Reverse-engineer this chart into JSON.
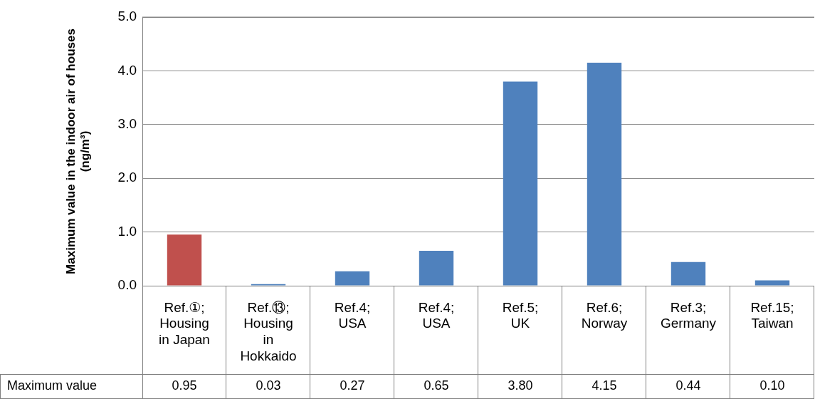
{
  "chart_data": {
    "type": "bar",
    "ylabel": "Maximum value in the indoor air of houses (ng/m³)",
    "categories": [
      "Ref.①; Housing in Japan",
      "Ref.⑬; Housing in Hokkaido",
      "Ref.4; USA",
      "Ref.4; USA",
      "Ref.5; UK",
      "Ref.6; Norway",
      "Ref.3; Germany",
      "Ref.15; Taiwan"
    ],
    "series": [
      {
        "name": "Maximum value",
        "colors": [
          "#c0504d",
          "#4f81bd",
          "#4f81bd",
          "#4f81bd",
          "#4f81bd",
          "#4f81bd",
          "#4f81bd",
          "#4f81bd"
        ],
        "values": [
          0.95,
          0.03,
          0.27,
          0.65,
          3.8,
          4.15,
          0.44,
          0.1
        ],
        "value_labels": [
          "0.95",
          "0.03",
          "0.27",
          "0.65",
          "3.80",
          "4.15",
          "0.44",
          "0.10"
        ]
      }
    ],
    "ylim": [
      0,
      5
    ],
    "yticks": [
      {
        "value": 0,
        "label": "0.0"
      },
      {
        "value": 1,
        "label": "1.0"
      },
      {
        "value": 2,
        "label": "2.0"
      },
      {
        "value": 3,
        "label": "3.0"
      },
      {
        "value": 4,
        "label": "4.0"
      },
      {
        "value": 5,
        "label": "5.0"
      }
    ],
    "grid": "y",
    "legend": false
  }
}
